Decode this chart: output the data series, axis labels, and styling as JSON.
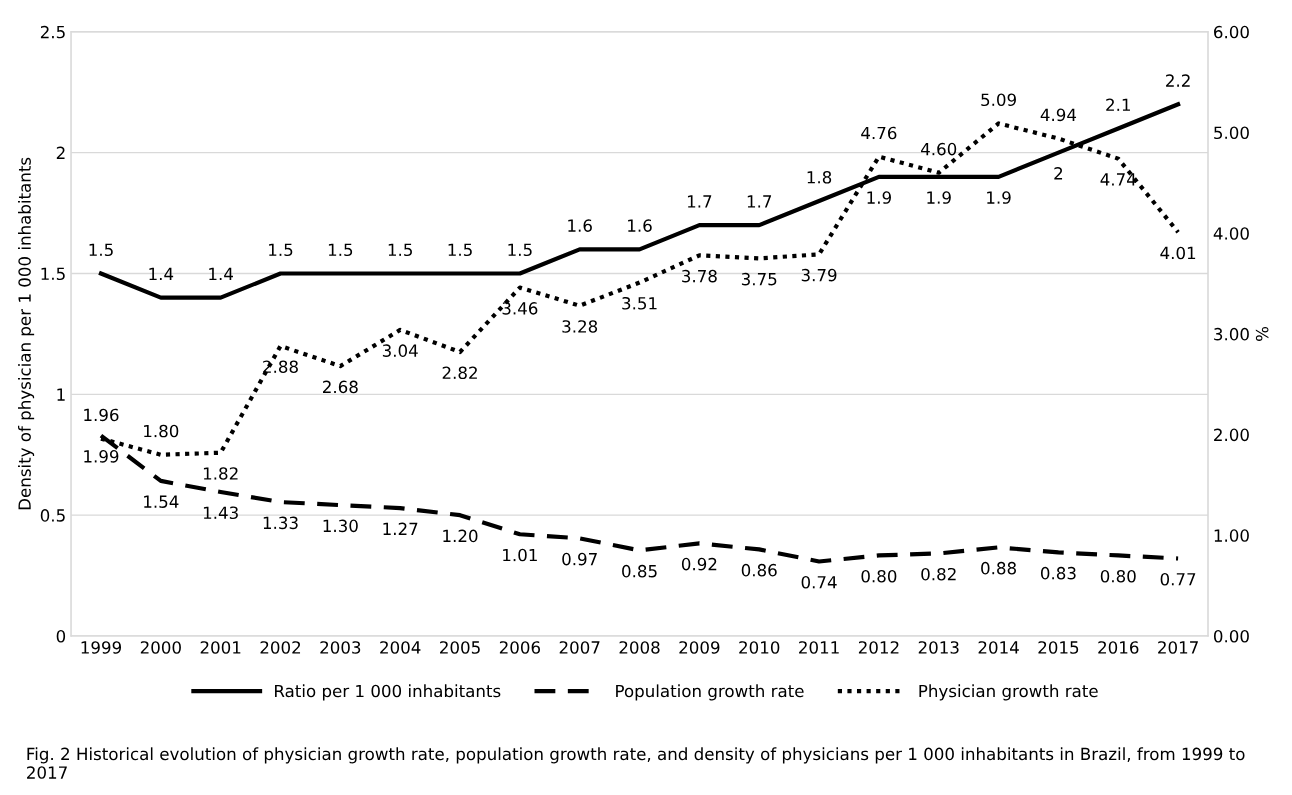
{
  "chart_data": {
    "type": "line",
    "categories": [
      "1999",
      "2000",
      "2001",
      "2002",
      "2003",
      "2004",
      "2005",
      "2006",
      "2007",
      "2008",
      "2009",
      "2010",
      "2011",
      "2012",
      "2013",
      "2014",
      "2015",
      "2016",
      "2017"
    ],
    "series": [
      {
        "name": "Ratio per 1 000 inhabitants",
        "color": "#000000",
        "line_style": "solid",
        "values": [
          1.5,
          1.4,
          1.4,
          1.5,
          1.5,
          1.5,
          1.5,
          1.5,
          1.6,
          1.6,
          1.7,
          1.7,
          1.8,
          1.9,
          1.9,
          1.9,
          2,
          2.1,
          2.2
        ],
        "value_labels": [
          "1.5",
          "1.4",
          "1.4",
          "1.5",
          "1.5",
          "1.5",
          "1.5",
          "1.5",
          "1.6",
          "1.6",
          "1.7",
          "1.7",
          "1.8",
          "1.9",
          "1.9",
          "1.9",
          "2",
          "2.1",
          "2.2"
        ]
      },
      {
        "name": "Population growth rate",
        "color": "#000000",
        "line_style": "dashed",
        "axis": "y2",
        "values": [
          1.99,
          1.54,
          1.43,
          1.33,
          1.3,
          1.27,
          1.2,
          1.01,
          0.97,
          0.85,
          0.92,
          0.86,
          0.74,
          0.8,
          0.82,
          0.88,
          0.83,
          0.8,
          0.77
        ],
        "value_labels": [
          "1.99",
          "1.54",
          "1.43",
          "1.33",
          "1.30",
          "1.27",
          "1.20",
          "1.01",
          "0.97",
          "0.85",
          "0.92",
          "0.86",
          "0.74",
          "0.80",
          "0.82",
          "0.88",
          "0.83",
          "0.80",
          "0.77"
        ]
      },
      {
        "name": "Physician growth rate",
        "color": "#000000",
        "line_style": "dotted",
        "axis": "y2",
        "values": [
          1.96,
          1.8,
          1.82,
          2.88,
          2.68,
          3.04,
          2.82,
          3.46,
          3.28,
          3.51,
          3.78,
          3.75,
          3.79,
          4.76,
          4.6,
          5.09,
          4.94,
          4.74,
          4.01
        ],
        "value_labels": [
          "1.96",
          "1.80",
          "1.82",
          "2.88",
          "2.68",
          "3.04",
          "2.82",
          "3.46",
          "3.28",
          "3.51",
          "3.78",
          "3.75",
          "3.79",
          "4.76",
          "4.60",
          "5.09",
          "4.94",
          "4.74",
          "4.01"
        ]
      }
    ],
    "ylabel": "Density of physician per 1 000 inhabitants",
    "y2label": "%",
    "ylim": [
      0,
      2.5
    ],
    "yticks": [
      0,
      0.5,
      1,
      1.5,
      2,
      2.5
    ],
    "y2lim": [
      0,
      6
    ],
    "y2ticks": [
      {
        "value": 0,
        "label": "0.00"
      },
      {
        "value": 1,
        "label": "1.00"
      },
      {
        "value": 2,
        "label": "2.00"
      },
      {
        "value": 3,
        "label": "3.00"
      },
      {
        "value": 4,
        "label": "4.00"
      },
      {
        "value": 5,
        "label": "5.00"
      },
      {
        "value": 6,
        "label": "6.00"
      }
    ],
    "grid": "y",
    "legend": "bottom",
    "marker": "none",
    "annotations": [
      "Fig. 2 Historical evolution of physician growth rate, population growth rate, and density of physicians per 1 000 inhabitants in Brazil, from 1999 to 2017"
    ]
  }
}
